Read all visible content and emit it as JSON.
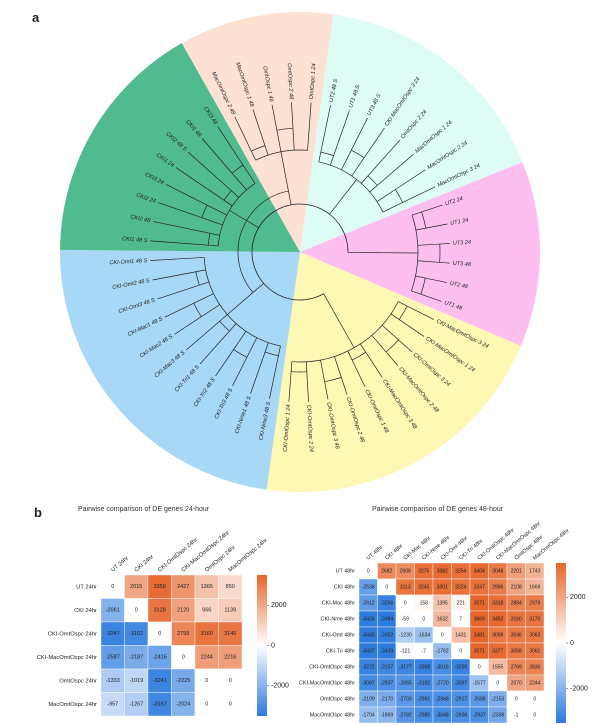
{
  "panel_a": {
    "label": "a",
    "sectors": [
      {
        "color": "#fdf8b3",
        "leaves": [
          "CKI-MacOmtOspc 3 24",
          "CKI-MacOmtOspc 1 24",
          "CKI-OmtOspc 3 24",
          "CKI-MacOmtOspc 2 48",
          "CKI-MacOmtOspc 3 48",
          "CKI-OmtOspc 1 48",
          "CKI-OmtOspc 2 48",
          "CKI-OmtOspc 3 48",
          "CKI-OmtOspc 2 24",
          "CKI-OmtOspc 1 24"
        ]
      },
      {
        "color": "#a7d8f6",
        "leaves": [
          "CKI-Nme3 48 S",
          "CKI-Nme1 48 S",
          "CKI-Tri3 48 S",
          "CKI-Tri2 48 S",
          "CKI-Tri1 48 S",
          "CKI-Mac3 48 S",
          "CKI-Mac2 48 S",
          "CKI-Mac1 48 S",
          "CKI-Omt3 48 S",
          "CKI-Omt2 48 S",
          "CKI-Omt1 48 S"
        ]
      },
      {
        "color": "#4fbb8e",
        "leaves": [
          "CKI1 48 S",
          "CKI2 48",
          "CKI2 24",
          "CKI3 24",
          "CKI1 24",
          "CKI2 48 S",
          "CKI1 48",
          "CKI3 48"
        ]
      },
      {
        "color": "#fde1d3",
        "leaves": [
          "MacOmtOspc 2 48",
          "MacOmtOspc 1 48",
          "OmtOspc 1 48",
          "OmtOspc 2 48",
          "OmtOspc 1 24"
        ]
      },
      {
        "color": "#defcf6",
        "leaves": [
          "UT2 48 S",
          "UT1 48 S",
          "UT3 48 S",
          "CKI-MacOmtOspc 3 24",
          "OmtOspc 2 24",
          "MacOmtOspc 1 24",
          "MacOmtOspc 2 24",
          "MacOmtOspc 3 24"
        ]
      },
      {
        "color": "#fdbff0",
        "leaves": [
          "UT2 24",
          "UT1 24",
          "UT3 24",
          "UT3 48",
          "UT2 48",
          "UT1 48"
        ]
      }
    ]
  },
  "panel_b": {
    "label": "b",
    "heatmap_24": {
      "title": "Pairwise comparison of DE genes 24-hour",
      "labels": [
        "UT 24hr",
        "CKI 24hr",
        "CKI-OmtOspc 24hr",
        "CKI-MacOmtOspc 24hr",
        "OmtOspc 24hr",
        "MacOmtOspc 24hr"
      ],
      "values": [
        [
          0,
          2015,
          3350,
          2427,
          1365,
          850
        ],
        [
          -2061,
          0,
          3128,
          2120,
          966,
          1139
        ],
        [
          -3247,
          -3102,
          0,
          2759,
          3160,
          3146
        ],
        [
          -2587,
          -2187,
          -2415,
          0,
          2244,
          2216
        ],
        [
          -1333,
          -1019,
          -3241,
          -2225,
          0,
          0
        ],
        [
          -957,
          -1267,
          -3167,
          -2024,
          0,
          0
        ]
      ],
      "legend_ticks": [
        "2000",
        "0",
        "-2000"
      ],
      "vmin": -3500,
      "vmax": 3500
    },
    "heatmap_48": {
      "title": "Pairwise comparison of DE genes 48-hour",
      "labels": [
        "UT 48hr",
        "CKI 48hr",
        "CKI-Mac 48hr",
        "CKI-Nme 48hr",
        "CKI-Omt 48hr",
        "CKI-Tri 48hr",
        "CKI-OmtOspc 48hr",
        "CKI-MacOmtOspc 48hr",
        "OmtOspc 48hr",
        "MacOmtOspc 48hr"
      ],
      "values": [
        [
          0,
          2682,
          2608,
          3275,
          3382,
          3254,
          3404,
          3048,
          2201,
          1743
        ],
        [
          -2538,
          0,
          3113,
          3245,
          3301,
          3224,
          3247,
          2996,
          2108,
          1669
        ],
        [
          -2612,
          -3256,
          0,
          158,
          1395,
          221,
          3571,
          3318,
          2884,
          2979
        ],
        [
          -3426,
          -3484,
          -59,
          0,
          1632,
          7,
          3669,
          3452,
          3160,
          3170
        ],
        [
          -3440,
          -3352,
          -1230,
          -1634,
          0,
          1431,
          3481,
          3098,
          3046,
          3063
        ],
        [
          -3437,
          -3439,
          -121,
          -7,
          -1762,
          0,
          3571,
          3377,
          3058,
          3061
        ],
        [
          -3272,
          -3157,
          -3177,
          -3308,
          -3016,
          -3256,
          0,
          1555,
          2769,
          2836
        ],
        [
          -3087,
          -2937,
          -2855,
          -3102,
          -2720,
          -3097,
          -1577,
          0,
          2070,
          2244
        ],
        [
          -2109,
          -2170,
          -2703,
          -2961,
          -2968,
          -2917,
          -2688,
          -2153,
          0,
          0
        ],
        [
          -1704,
          -1869,
          -2782,
          -2985,
          -3048,
          -2936,
          -2937,
          -2308,
          -1,
          0
        ]
      ],
      "legend_ticks": [
        "2000",
        "0",
        "-2000"
      ],
      "vmin": -3500,
      "vmax": 3500
    }
  }
}
